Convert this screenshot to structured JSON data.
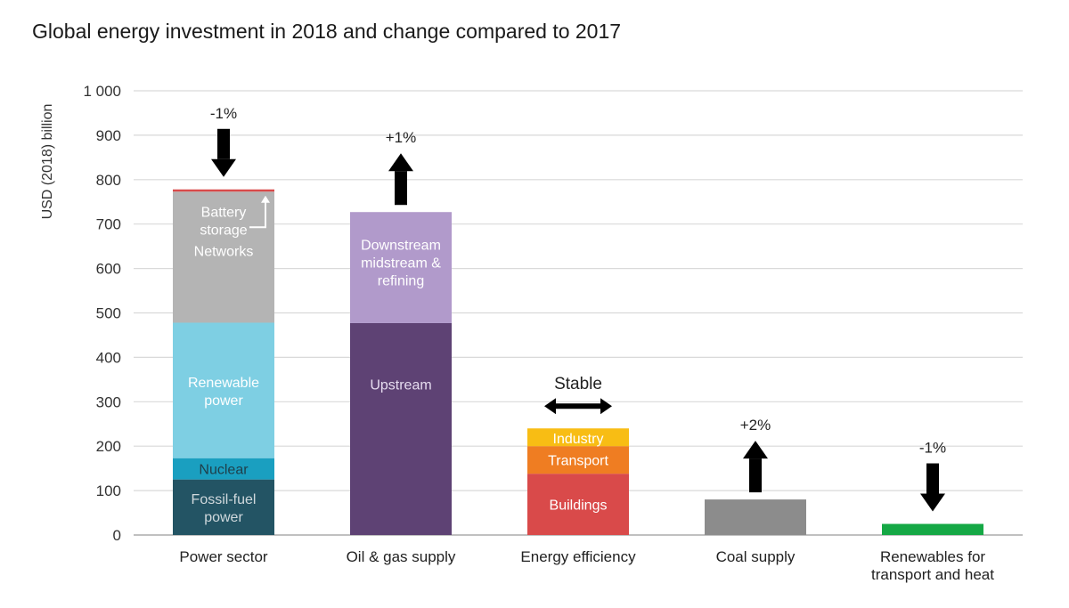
{
  "chart_data": {
    "type": "bar",
    "title": "Global energy investment in 2018 and change compared to 2017",
    "ylabel": "USD (2018) billion",
    "xlabel": "",
    "ylim": [
      0,
      1000
    ],
    "yticks": [
      0,
      100,
      200,
      300,
      400,
      500,
      600,
      700,
      800,
      900,
      1000
    ],
    "ytick_labels": [
      "0",
      "100",
      "200",
      "300",
      "400",
      "500",
      "600",
      "700",
      "800",
      "900",
      "1 000"
    ],
    "grid": true,
    "categories": [
      {
        "label": [
          "Power sector"
        ],
        "change": "-1%",
        "direction": "down",
        "segments": [
          {
            "name": [
              "Fossil-fuel",
              "power"
            ],
            "value": 125,
            "color": "#235464",
            "text_color": "#cfd8dc"
          },
          {
            "name": [
              "Nuclear"
            ],
            "value": 48,
            "color": "#1a9fc0",
            "text_color": "#1f3f4a"
          },
          {
            "name": [
              "Renewable",
              "power"
            ],
            "value": 305,
            "color": "#7ecfe3",
            "text_color": "#ffffff"
          },
          {
            "name": [
              "Networks"
            ],
            "value": 295,
            "color": "#b4b4b4",
            "text_color": "#ffffff"
          },
          {
            "name": [
              "Battery",
              "storage"
            ],
            "value": 5,
            "color": "#d94a4a",
            "text_color": "#ffffff"
          }
        ]
      },
      {
        "label": [
          "Oil & gas supply"
        ],
        "change": "+1%",
        "direction": "up",
        "segments": [
          {
            "name": [
              "Upstream"
            ],
            "value": 477,
            "color": "#5e4274",
            "text_color": "#e6dcef"
          },
          {
            "name": [
              "Downstream",
              "midstream &",
              "refining"
            ],
            "value": 250,
            "color": "#b19acb",
            "text_color": "#ffffff"
          }
        ]
      },
      {
        "label": [
          "Energy efficiency"
        ],
        "change": "Stable",
        "direction": "both",
        "segments": [
          {
            "name": [
              "Buildings"
            ],
            "value": 138,
            "color": "#d94a4a",
            "text_color": "#ffffff"
          },
          {
            "name": [
              "Transport"
            ],
            "value": 62,
            "color": "#ef7d22",
            "text_color": "#ffffff"
          },
          {
            "name": [
              "Industry"
            ],
            "value": 40,
            "color": "#f8bd14",
            "text_color": "#ffffff"
          }
        ]
      },
      {
        "label": [
          "Coal supply"
        ],
        "change": "+2%",
        "direction": "up",
        "segments": [
          {
            "name": [],
            "value": 80,
            "color": "#8c8c8c",
            "text_color": "#ffffff"
          }
        ]
      },
      {
        "label": [
          "Renewables for",
          "transport and heat"
        ],
        "change": "-1%",
        "direction": "down",
        "segments": [
          {
            "name": [],
            "value": 25,
            "color": "#15a845",
            "text_color": "#ffffff"
          }
        ]
      }
    ]
  }
}
